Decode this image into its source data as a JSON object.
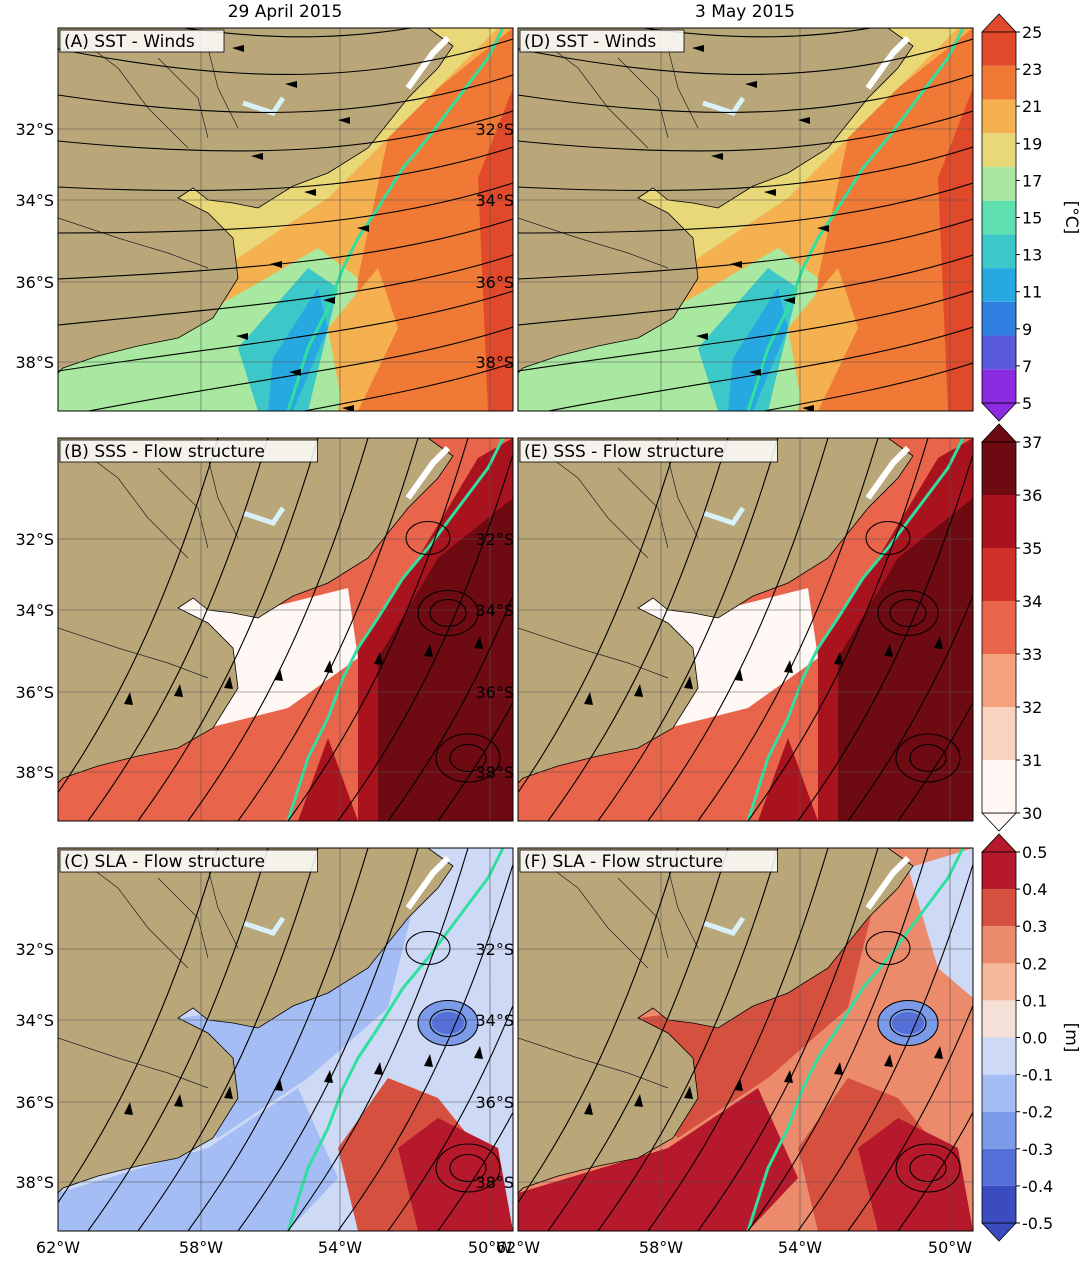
{
  "column_titles": [
    "29 April 2015",
    "3 May  2015"
  ],
  "panels": [
    {
      "id": "A",
      "label": "(A) SST - Winds",
      "variable": "sst",
      "flow": "winds"
    },
    {
      "id": "D",
      "label": "(D) SST - Winds",
      "variable": "sst",
      "flow": "winds"
    },
    {
      "id": "B",
      "label": "(B) SSS - Flow structure",
      "variable": "sss",
      "flow": "currents"
    },
    {
      "id": "E",
      "label": "(E) SSS - Flow structure",
      "variable": "sss",
      "flow": "currents"
    },
    {
      "id": "C",
      "label": "(C) SLA - Flow structure",
      "variable": "sla",
      "flow": "currents"
    },
    {
      "id": "F",
      "label": "(F) SLA - Flow structure",
      "variable": "sla",
      "flow": "currents"
    }
  ],
  "lat_labels": [
    "32°S",
    "34°S",
    "36°S",
    "38°S"
  ],
  "lon_labels": [
    "62°W",
    "58°W",
    "54°W",
    "50°W"
  ],
  "colorbars": [
    {
      "variable": "sst",
      "unit": "[°C]",
      "ticks": [
        "5",
        "7",
        "9",
        "11",
        "13",
        "15",
        "17",
        "19",
        "21",
        "23",
        "25"
      ],
      "colors": [
        "#8a2be2",
        "#5a5adf",
        "#2f7fe0",
        "#28a8e0",
        "#3cc8c8",
        "#5fe0b0",
        "#a8e8a0",
        "#e8d878",
        "#f5b050",
        "#f07a35",
        "#e04a2a"
      ]
    },
    {
      "variable": "sss",
      "unit": "",
      "ticks": [
        "30",
        "31",
        "32",
        "33",
        "34",
        "35",
        "36",
        "37"
      ],
      "colors": [
        "#fff8f4",
        "#f9d3c0",
        "#f4a27e",
        "#e8644a",
        "#d1302a",
        "#a8131e",
        "#6e0a12"
      ]
    },
    {
      "variable": "sla",
      "unit": "[m]",
      "ticks": [
        "-0.5",
        "-0.4",
        "-0.3",
        "-0.2",
        "-0.1",
        "0.0",
        "0.1",
        "0.2",
        "0.3",
        "0.4",
        "0.5"
      ],
      "colors": [
        "#3b4cc0",
        "#5470d8",
        "#7b9ae8",
        "#a5bdf5",
        "#cdd9f5",
        "#f4e0d6",
        "#f7b99c",
        "#ec8a6c",
        "#d6503f",
        "#b5192b"
      ]
    }
  ],
  "colors": {
    "land": "#b9a77a",
    "front": "#30e0a0",
    "lake": "#d8f0f8",
    "grid": "#555555"
  }
}
